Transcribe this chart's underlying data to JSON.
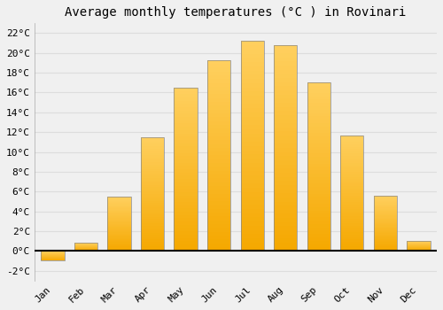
{
  "title": "Average monthly temperatures (°C ) in Rovinari",
  "months": [
    "Jan",
    "Feb",
    "Mar",
    "Apr",
    "May",
    "Jun",
    "Jul",
    "Aug",
    "Sep",
    "Oct",
    "Nov",
    "Dec"
  ],
  "values": [
    -1.0,
    0.8,
    5.5,
    11.5,
    16.5,
    19.3,
    21.2,
    20.8,
    17.0,
    11.7,
    5.6,
    1.0
  ],
  "bar_color_light": "#FFD060",
  "bar_color_dark": "#F5A800",
  "bar_edge_color": "#999999",
  "background_color": "#F0F0F0",
  "plot_bg_color": "#F0F0F0",
  "grid_color": "#dddddd",
  "ylim": [
    -3,
    23
  ],
  "yticks": [
    -2,
    0,
    2,
    4,
    6,
    8,
    10,
    12,
    14,
    16,
    18,
    20,
    22
  ],
  "ytick_labels": [
    "-2°C",
    "0°C",
    "2°C",
    "4°C",
    "6°C",
    "8°C",
    "10°C",
    "12°C",
    "14°C",
    "16°C",
    "18°C",
    "20°C",
    "22°C"
  ],
  "title_fontsize": 10,
  "tick_fontsize": 8,
  "font_family": "monospace",
  "bar_width": 0.7
}
